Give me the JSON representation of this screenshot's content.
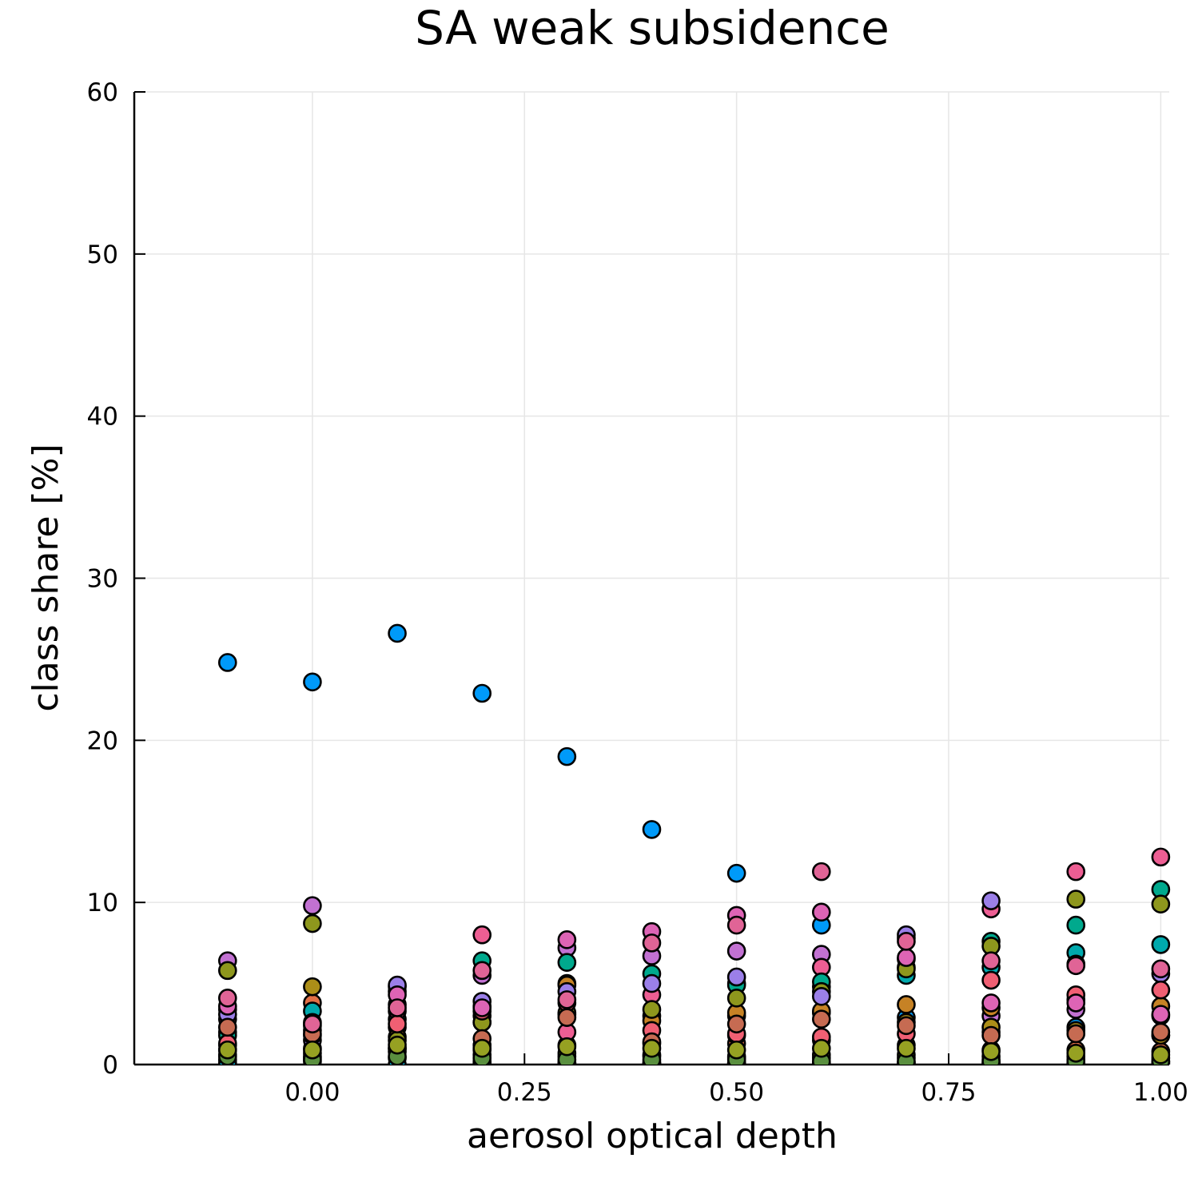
{
  "chart_data": {
    "type": "scatter",
    "title": "SA weak subsidence",
    "xlabel": "aerosol optical depth",
    "ylabel": "class share [%]",
    "xlim": [
      -0.21,
      1.01
    ],
    "ylim": [
      0,
      60
    ],
    "xticks": [
      0.0,
      0.25,
      0.5,
      0.75,
      1.0
    ],
    "xtick_labels": [
      "0.00",
      "0.25",
      "0.50",
      "0.75",
      "1.00"
    ],
    "yticks": [
      0,
      10,
      20,
      30,
      40,
      50,
      60
    ],
    "ytick_labels": [
      "0",
      "10",
      "20",
      "30",
      "40",
      "50",
      "60"
    ],
    "grid": true,
    "legend": "none",
    "x": [
      -0.1,
      0.0,
      0.1,
      0.2,
      0.3,
      0.4,
      0.5,
      0.6,
      0.7,
      0.8,
      0.9,
      1.0
    ],
    "series": [
      {
        "color": "#009af9",
        "values": [
          24.8,
          23.6,
          26.6,
          22.9,
          19.0,
          14.5,
          11.8,
          8.6,
          2.9,
          2.0,
          2.3,
          1.8
        ]
      },
      {
        "color": "#e26f46",
        "values": [
          2.0,
          3.8,
          2.3,
          1.2,
          1.2,
          1.3,
          1.3,
          1.5,
          1.2,
          0.9,
          0.9,
          0.8
        ]
      },
      {
        "color": "#3da44d",
        "values": [
          0.3,
          0.5,
          0.4,
          0.2,
          0.1,
          0.1,
          0.1,
          0.1,
          0.1,
          0.1,
          0.1,
          0.1
        ]
      },
      {
        "color": "#c271d2",
        "values": [
          6.4,
          9.8,
          4.8,
          5.5,
          7.2,
          6.7,
          7.0,
          6.8,
          6.5,
          3.0,
          3.4,
          3.0
        ]
      },
      {
        "color": "#ac8e18",
        "values": [
          3.4,
          4.8,
          4.5,
          3.0,
          3.1,
          3.0,
          3.0,
          3.2,
          2.6,
          2.3,
          2.1,
          1.8
        ]
      },
      {
        "color": "#00a9ad",
        "values": [
          0.1,
          3.3,
          2.8,
          3.6,
          5.0,
          0.1,
          5.0,
          4.8,
          5.5,
          6.0,
          6.9,
          7.4
        ]
      },
      {
        "color": "#ed5e93",
        "values": [
          2.8,
          2.4,
          3.3,
          8.0,
          2.0,
          4.3,
          1.8,
          6.0,
          7.8,
          9.6,
          11.9,
          12.8
        ]
      },
      {
        "color": "#c68225",
        "values": [
          1.2,
          2.1,
          1.7,
          2.6,
          4.9,
          2.7,
          3.2,
          3.3,
          3.7,
          3.5,
          4.0,
          3.6
        ]
      },
      {
        "color": "#00a98d",
        "values": [
          1.8,
          1.0,
          3.7,
          6.4,
          6.3,
          5.6,
          4.9,
          5.1,
          6.0,
          7.6,
          8.6,
          10.8
        ]
      },
      {
        "color": "#8e971d",
        "values": [
          5.8,
          8.7,
          1.5,
          2.6,
          3.2,
          3.4,
          4.1,
          4.5,
          5.9,
          7.3,
          10.2,
          9.9
        ]
      },
      {
        "color": "#00a8cb",
        "values": [
          0.0,
          0.2,
          0.0,
          0.1,
          0.1,
          0.0,
          0.1,
          0.1,
          0.1,
          0.1,
          0.1,
          0.0
        ]
      },
      {
        "color": "#9b7fe8",
        "values": [
          3.1,
          1.5,
          4.9,
          3.9,
          4.5,
          5.0,
          5.4,
          4.2,
          8.0,
          10.1,
          6.2,
          5.6
        ]
      },
      {
        "color": "#618df6",
        "values": [
          0.6,
          0.4,
          1.0,
          0.6,
          0.5,
          0.5,
          0.4,
          0.4,
          0.4,
          0.3,
          0.3,
          0.2
        ]
      },
      {
        "color": "#f05f73",
        "values": [
          1.3,
          1.8,
          2.5,
          3.3,
          3.8,
          2.1,
          1.9,
          1.7,
          1.9,
          5.2,
          4.3,
          4.6
        ]
      },
      {
        "color": "#dd64b5",
        "values": [
          3.6,
          2.6,
          4.3,
          3.5,
          7.7,
          8.2,
          9.2,
          9.4,
          6.6,
          3.8,
          3.8,
          3.1
        ]
      },
      {
        "color": "#6b9d00",
        "values": [
          0.9,
          0.7,
          0.8,
          0.9,
          0.7,
          0.6,
          0.5,
          0.6,
          0.6,
          0.5,
          0.5,
          0.4
        ]
      },
      {
        "color": "#c66b52",
        "values": [
          2.3,
          1.9,
          1.0,
          1.6,
          2.9,
          1.4,
          2.5,
          2.8,
          2.4,
          1.8,
          1.9,
          2.0
        ]
      },
      {
        "color": "#5a8f3f",
        "values": [
          0.5,
          0.3,
          0.5,
          0.4,
          0.3,
          0.3,
          0.3,
          0.2,
          0.2,
          0.2,
          0.2,
          0.2
        ]
      },
      {
        "color": "#e06496",
        "values": [
          4.1,
          2.5,
          3.5,
          5.8,
          4.0,
          7.5,
          8.6,
          11.9,
          7.6,
          6.4,
          6.1,
          5.9
        ]
      },
      {
        "color": "#96a122",
        "values": [
          0.9,
          0.9,
          1.2,
          1.0,
          1.1,
          1.0,
          0.9,
          1.0,
          1.0,
          0.8,
          0.7,
          0.6
        ]
      }
    ]
  }
}
